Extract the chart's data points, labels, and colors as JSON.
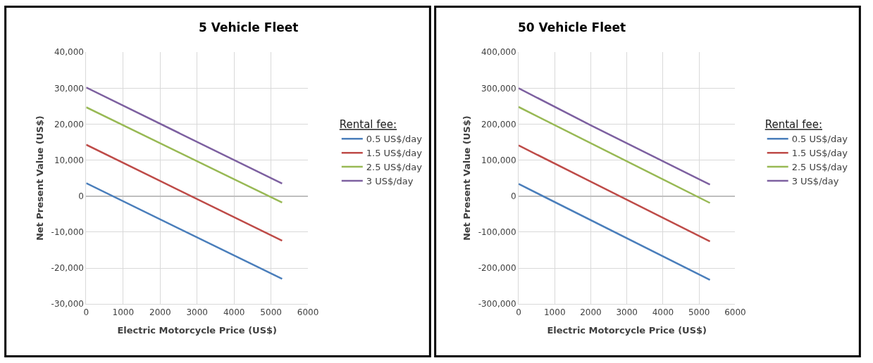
{
  "chart_data": [
    {
      "type": "line",
      "title": "5 Vehicle Fleet",
      "xlabel": "Electric Motorcycle Price (US$)",
      "ylabel": "Net Present Value (US$)",
      "legend_title": "Rental fee:",
      "legend": "right",
      "grid": true,
      "xlim": [
        0,
        6000
      ],
      "xticks": [
        0,
        1000,
        2000,
        3000,
        4000,
        5000,
        6000
      ],
      "ylim": [
        -30000,
        40000
      ],
      "yticks": [
        {
          "value": -30000,
          "label": "-30,000"
        },
        {
          "value": -20000,
          "label": "-20,000"
        },
        {
          "value": -10000,
          "label": "-10,000"
        },
        0,
        {
          "value": 10000,
          "label": "10,000"
        },
        {
          "value": 20000,
          "label": "20,000"
        },
        {
          "value": 30000,
          "label": "30,000"
        },
        {
          "value": 40000,
          "label": "40,000"
        }
      ],
      "series": [
        {
          "name": "0.5 US$/day",
          "color": "#4a7ebb",
          "x": [
            0,
            5300
          ],
          "values": [
            3600,
            -23000
          ]
        },
        {
          "name": "1.5 US$/day",
          "color": "#be4b48",
          "x": [
            0,
            5300
          ],
          "values": [
            14300,
            -12400
          ]
        },
        {
          "name": "2.5 US$/day",
          "color": "#98b954",
          "x": [
            0,
            5300
          ],
          "values": [
            24700,
            -1800
          ]
        },
        {
          "name": "3 US$/day",
          "color": "#7d60a0",
          "x": [
            0,
            5300
          ],
          "values": [
            30200,
            3500
          ]
        }
      ]
    },
    {
      "type": "line",
      "title": "50 Vehicle Fleet",
      "xlabel": "Electric Motorcycle Price (US$)",
      "ylabel": "Net Present Value (US$)",
      "legend_title": "Rental fee:",
      "legend": "right",
      "grid": true,
      "xlim": [
        0,
        6000
      ],
      "xticks": [
        0,
        1000,
        2000,
        3000,
        4000,
        5000,
        6000
      ],
      "ylim": [
        -300000,
        400000
      ],
      "yticks": [
        {
          "value": -300000,
          "label": "-300,000"
        },
        {
          "value": -200000,
          "label": "-200,000"
        },
        {
          "value": -100000,
          "label": "-100,000"
        },
        0,
        {
          "value": 100000,
          "label": "100,000"
        },
        {
          "value": 200000,
          "label": "200,000"
        },
        {
          "value": 300000,
          "label": "300,000"
        },
        {
          "value": 400000,
          "label": "400,000"
        }
      ],
      "series": [
        {
          "name": "0.5 US$/day",
          "color": "#4a7ebb",
          "x": [
            0,
            5300
          ],
          "values": [
            34000,
            -233000
          ]
        },
        {
          "name": "1.5 US$/day",
          "color": "#be4b48",
          "x": [
            0,
            5300
          ],
          "values": [
            141000,
            -126000
          ]
        },
        {
          "name": "2.5 US$/day",
          "color": "#98b954",
          "x": [
            0,
            5300
          ],
          "values": [
            248000,
            -19000
          ]
        },
        {
          "name": "3 US$/day",
          "color": "#7d60a0",
          "x": [
            0,
            2000,
            5300
          ],
          "values": [
            300000,
            197000,
            32000
          ]
        }
      ]
    }
  ]
}
